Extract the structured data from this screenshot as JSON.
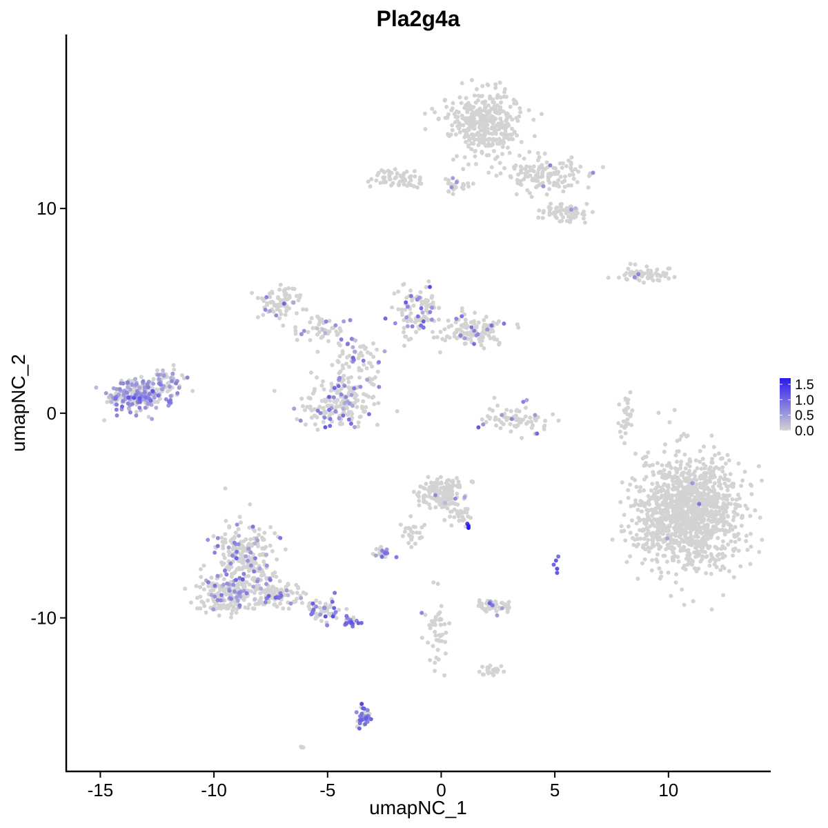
{
  "chart_data": {
    "type": "scatter",
    "title": "Pla2g4a",
    "xlabel": "umapNC_1",
    "ylabel": "umapNC_2",
    "xlim": [
      -16.5,
      14.5
    ],
    "ylim": [
      -17.5,
      18.5
    ],
    "x_ticks": [
      -15,
      -10,
      -5,
      0,
      5,
      10
    ],
    "y_ticks": [
      -10,
      0,
      10
    ],
    "grid": false,
    "legend": {
      "placement": "right",
      "labels": [
        "1.5",
        "1.0",
        "0.5",
        "0.0"
      ],
      "values": [
        1.5,
        1.0,
        0.5,
        0.0
      ],
      "color_low": "#d3d3d3",
      "color_high": "#2a1aee",
      "max_value": 1.7
    },
    "clusters": [
      {
        "name": "",
        "center": [
          1.8,
          14.2
        ],
        "spread": [
          1.1,
          1.0
        ],
        "n": 380,
        "expr_fraction": 0.0,
        "expr_mean": 0.3
      },
      {
        "name": "",
        "center": [
          4.3,
          11.6
        ],
        "spread": [
          1.3,
          0.6
        ],
        "n": 130,
        "expr_fraction": 0.02,
        "expr_mean": 0.5
      },
      {
        "name": "",
        "center": [
          5.5,
          9.8
        ],
        "spread": [
          0.8,
          0.35
        ],
        "n": 70,
        "expr_fraction": 0.03,
        "expr_mean": 0.5
      },
      {
        "name": "",
        "center": [
          -1.8,
          11.5
        ],
        "spread": [
          0.9,
          0.35
        ],
        "n": 60,
        "expr_fraction": 0.0,
        "expr_mean": 0.3
      },
      {
        "name": "",
        "center": [
          0.8,
          11.2
        ],
        "spread": [
          0.6,
          0.3
        ],
        "n": 25,
        "expr_fraction": 0.05,
        "expr_mean": 0.5
      },
      {
        "name": "",
        "center": [
          8.9,
          6.8
        ],
        "spread": [
          0.9,
          0.22
        ],
        "n": 65,
        "expr_fraction": 0.06,
        "expr_mean": 0.6
      },
      {
        "name": "",
        "center": [
          -7.0,
          5.4
        ],
        "spread": [
          0.7,
          0.5
        ],
        "n": 80,
        "expr_fraction": 0.1,
        "expr_mean": 0.55
      },
      {
        "name": "",
        "center": [
          -5.4,
          4.0
        ],
        "spread": [
          0.9,
          0.5
        ],
        "n": 50,
        "expr_fraction": 0.1,
        "expr_mean": 0.55
      },
      {
        "name": "",
        "center": [
          -1.0,
          5.0
        ],
        "spread": [
          0.7,
          0.9
        ],
        "n": 110,
        "expr_fraction": 0.18,
        "expr_mean": 0.7
      },
      {
        "name": "",
        "center": [
          1.5,
          4.0
        ],
        "spread": [
          1.0,
          0.5
        ],
        "n": 120,
        "expr_fraction": 0.12,
        "expr_mean": 0.7
      },
      {
        "name": "",
        "center": [
          -3.8,
          2.8
        ],
        "spread": [
          0.8,
          0.8
        ],
        "n": 60,
        "expr_fraction": 0.15,
        "expr_mean": 0.65
      },
      {
        "name": "",
        "center": [
          -4.5,
          0.6
        ],
        "spread": [
          1.1,
          0.9
        ],
        "n": 190,
        "expr_fraction": 0.18,
        "expr_mean": 0.65
      },
      {
        "name": "",
        "center": [
          -13.3,
          0.9
        ],
        "spread": [
          0.9,
          0.55
        ],
        "n": 260,
        "expr_fraction": 0.55,
        "expr_mean": 0.55
      },
      {
        "name": "",
        "center": [
          -12.1,
          1.8
        ],
        "spread": [
          0.5,
          0.4
        ],
        "n": 40,
        "expr_fraction": 0.4,
        "expr_mean": 0.55
      },
      {
        "name": "",
        "center": [
          3.3,
          -0.3
        ],
        "spread": [
          1.0,
          0.5
        ],
        "n": 70,
        "expr_fraction": 0.1,
        "expr_mean": 0.7
      },
      {
        "name": "",
        "center": [
          8.1,
          -0.2
        ],
        "spread": [
          0.25,
          0.9
        ],
        "n": 30,
        "expr_fraction": 0.0,
        "expr_mean": 0.3
      },
      {
        "name": "",
        "center": [
          11.0,
          -4.8
        ],
        "spread": [
          1.5,
          1.8
        ],
        "n": 1200,
        "expr_fraction": 0.005,
        "expr_mean": 0.6
      },
      {
        "name": "",
        "center": [
          9.3,
          -5.8
        ],
        "spread": [
          0.6,
          0.8
        ],
        "n": 80,
        "expr_fraction": 0.01,
        "expr_mean": 0.5
      },
      {
        "name": "",
        "center": [
          0.0,
          -3.9
        ],
        "spread": [
          0.7,
          0.45
        ],
        "n": 170,
        "expr_fraction": 0.02,
        "expr_mean": 0.5
      },
      {
        "name": "",
        "center": [
          0.8,
          -5.0
        ],
        "spread": [
          0.45,
          0.35
        ],
        "n": 30,
        "expr_fraction": 0.08,
        "expr_mean": 0.6
      },
      {
        "name": "",
        "center": [
          -1.3,
          -5.8
        ],
        "spread": [
          0.4,
          0.5
        ],
        "n": 25,
        "expr_fraction": 0.0,
        "expr_mean": 0.3
      },
      {
        "name": "",
        "center": [
          -2.6,
          -6.8
        ],
        "spread": [
          0.35,
          0.15
        ],
        "n": 25,
        "expr_fraction": 0.2,
        "expr_mean": 0.7
      },
      {
        "name": "",
        "center": [
          -8.7,
          -7.0
        ],
        "spread": [
          0.9,
          1.1
        ],
        "n": 230,
        "expr_fraction": 0.18,
        "expr_mean": 0.6
      },
      {
        "name": "",
        "center": [
          -9.3,
          -8.9
        ],
        "spread": [
          1.0,
          0.6
        ],
        "n": 200,
        "expr_fraction": 0.18,
        "expr_mean": 0.6
      },
      {
        "name": "",
        "center": [
          -7.2,
          -8.9
        ],
        "spread": [
          0.9,
          0.5
        ],
        "n": 100,
        "expr_fraction": 0.2,
        "expr_mean": 0.65
      },
      {
        "name": "",
        "center": [
          -5.2,
          -9.6
        ],
        "spread": [
          0.7,
          0.35
        ],
        "n": 60,
        "expr_fraction": 0.3,
        "expr_mean": 0.7
      },
      {
        "name": "",
        "center": [
          -4.0,
          -10.2
        ],
        "spread": [
          0.3,
          0.2
        ],
        "n": 22,
        "expr_fraction": 0.65,
        "expr_mean": 0.9
      },
      {
        "name": "",
        "center": [
          2.3,
          -9.4
        ],
        "spread": [
          0.5,
          0.2
        ],
        "n": 50,
        "expr_fraction": 0.1,
        "expr_mean": 0.6
      },
      {
        "name": "",
        "center": [
          -0.2,
          -10.8
        ],
        "spread": [
          0.4,
          1.1
        ],
        "n": 45,
        "expr_fraction": 0.04,
        "expr_mean": 0.6
      },
      {
        "name": "",
        "center": [
          2.2,
          -12.6
        ],
        "spread": [
          0.4,
          0.15
        ],
        "n": 25,
        "expr_fraction": 0.0,
        "expr_mean": 0.3
      },
      {
        "name": "",
        "center": [
          -3.4,
          -14.8
        ],
        "spread": [
          0.2,
          0.35
        ],
        "n": 35,
        "expr_fraction": 0.75,
        "expr_mean": 0.9
      },
      {
        "name": "",
        "center": [
          -6.1,
          -16.3
        ],
        "spread": [
          0.08,
          0.05
        ],
        "n": 4,
        "expr_fraction": 0.0,
        "expr_mean": 0.3
      }
    ],
    "highlights": [
      {
        "x": 1.2,
        "y": -5.6,
        "value": 1.7
      },
      {
        "x": 1.2,
        "y": -5.5,
        "value": 1.6
      },
      {
        "x": 1.15,
        "y": -5.4,
        "value": 1.4
      },
      {
        "x": 5.05,
        "y": -7.2,
        "value": 1.1
      },
      {
        "x": 5.1,
        "y": -7.6,
        "value": 1.2
      },
      {
        "x": 4.95,
        "y": -7.4,
        "value": 1.0
      },
      {
        "x": 5.15,
        "y": -7.0,
        "value": 0.9
      },
      {
        "x": 5.1,
        "y": -7.8,
        "value": 1.1
      },
      {
        "x": -3.5,
        "y": -14.2,
        "value": 1.3
      },
      {
        "x": -3.3,
        "y": -14.9,
        "value": 1.1
      },
      {
        "x": -3.6,
        "y": -15.4,
        "value": 1.0
      },
      {
        "x": -3.9,
        "y": -10.3,
        "value": 1.0
      }
    ]
  }
}
